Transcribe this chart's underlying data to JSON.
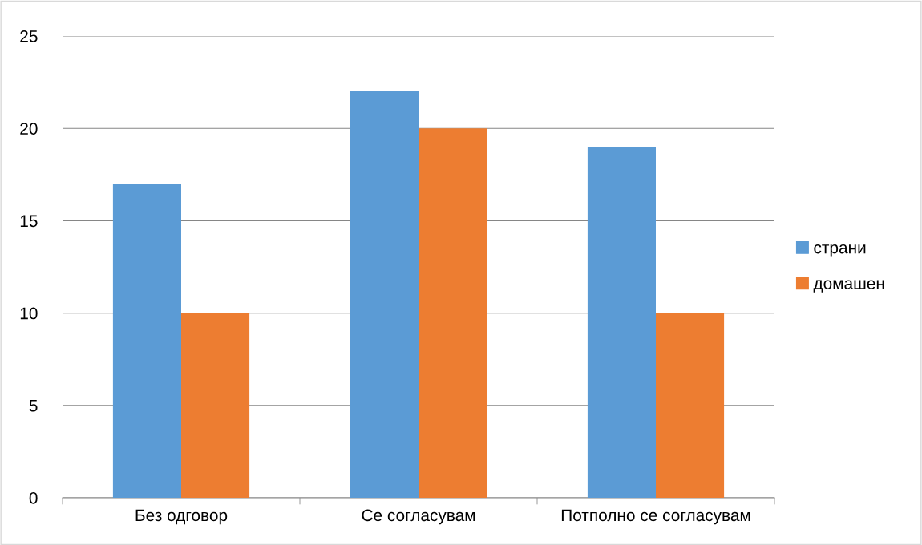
{
  "chart_data": {
    "type": "bar",
    "categories": [
      "Без одговор",
      "Се согласувам",
      "Потполно се согласувам"
    ],
    "series": [
      {
        "name": "страни",
        "color": "#5b9bd5",
        "values": [
          17,
          22,
          19
        ]
      },
      {
        "name": "домашен",
        "color": "#ed7d31",
        "values": [
          10,
          20,
          10
        ]
      }
    ],
    "ylim": [
      0,
      25
    ],
    "yticks": [
      0,
      5,
      10,
      15,
      20,
      25
    ],
    "grid": "y",
    "legend": "right"
  }
}
